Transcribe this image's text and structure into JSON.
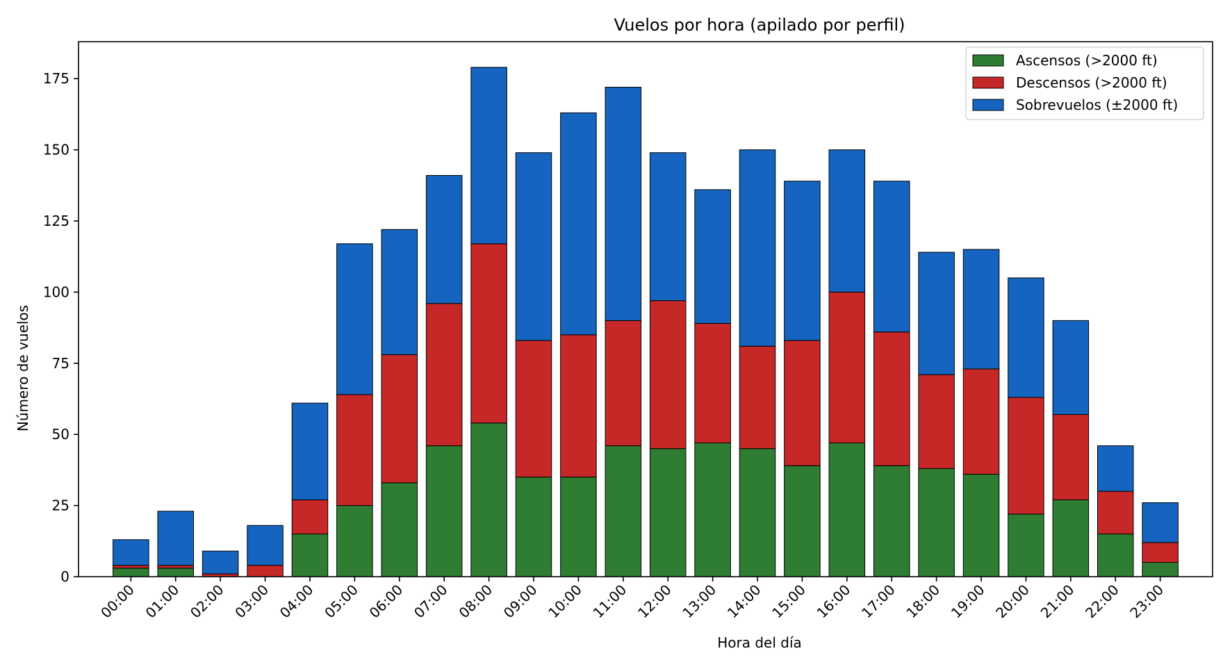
{
  "chart_data": {
    "type": "bar",
    "stacked": true,
    "title": "Vuelos por hora (apilado por perfil)",
    "xlabel": "Hora del día",
    "ylabel": "Número de vuelos",
    "ylim": [
      0,
      188
    ],
    "yticks": [
      0,
      25,
      50,
      75,
      100,
      125,
      150,
      175
    ],
    "grid": false,
    "legend_position": "top-right",
    "categories": [
      "00:00",
      "01:00",
      "02:00",
      "03:00",
      "04:00",
      "05:00",
      "06:00",
      "07:00",
      "08:00",
      "09:00",
      "10:00",
      "11:00",
      "12:00",
      "13:00",
      "14:00",
      "15:00",
      "16:00",
      "17:00",
      "18:00",
      "19:00",
      "20:00",
      "21:00",
      "22:00",
      "23:00"
    ],
    "series": [
      {
        "name": "Ascensos (>2000 ft)",
        "color": "#2e7d32",
        "values": [
          3,
          3,
          0,
          0,
          15,
          25,
          33,
          46,
          54,
          35,
          35,
          46,
          45,
          47,
          45,
          39,
          47,
          39,
          38,
          36,
          22,
          27,
          15,
          5
        ]
      },
      {
        "name": "Descensos (>2000 ft)",
        "color": "#c62828",
        "values": [
          1,
          1,
          1,
          4,
          12,
          39,
          45,
          50,
          63,
          48,
          50,
          44,
          52,
          42,
          36,
          44,
          53,
          47,
          33,
          37,
          41,
          30,
          15,
          7
        ]
      },
      {
        "name": "Sobrevuelos (±2000 ft)",
        "color": "#1565c0",
        "values": [
          9,
          19,
          8,
          14,
          34,
          53,
          44,
          45,
          62,
          66,
          78,
          82,
          52,
          47,
          69,
          56,
          50,
          53,
          43,
          42,
          42,
          33,
          16,
          14
        ]
      }
    ]
  }
}
